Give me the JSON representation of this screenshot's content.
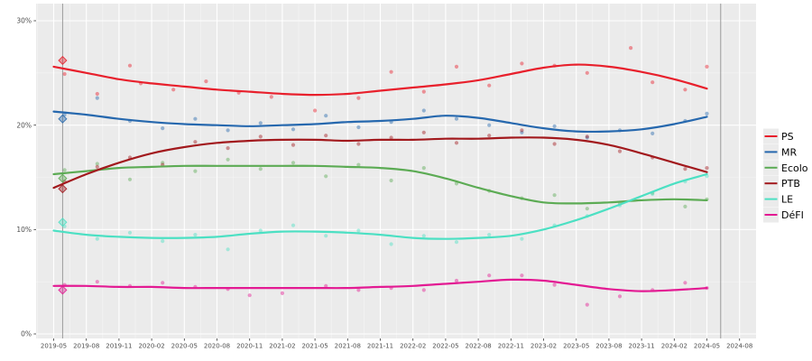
{
  "figure": {
    "background": "#ffffff",
    "panel_background": "#ebebeb",
    "gridline_major_color": "#ffffff",
    "gridline_minor_color": "#f7f7f7",
    "tick_label_color": "#4d4d4d",
    "tick_mark_color": "#333333",
    "election_line_color": "#9c9c9c",
    "legend_key_background": "#ebebeb",
    "legend_text_color": "#000000"
  },
  "chart_data": {
    "type": "scatter",
    "subtype": "polls-with-smoothed-trend-lines",
    "title": "",
    "xlabel": "",
    "ylabel": "",
    "x_axis": {
      "tick_labels": [
        "2019-05",
        "2019-08",
        "2019-11",
        "2020-02",
        "2020-05",
        "2020-08",
        "2020-11",
        "2021-02",
        "2021-05",
        "2021-08",
        "2021-11",
        "2022-02",
        "2022-05",
        "2022-08",
        "2022-11",
        "2023-02",
        "2023-05",
        "2023-08",
        "2023-11",
        "2024-02",
        "2024-05",
        "2024-08"
      ]
    },
    "y_axis": {
      "tick_labels": [
        "0%",
        "10%",
        "20%",
        "30%"
      ],
      "tick_values": [
        0,
        10,
        20,
        30
      ],
      "minor_values": [
        5,
        15,
        25
      ],
      "range": [
        -0.5,
        31.7
      ]
    },
    "grid": true,
    "legend_position": "right",
    "elections": [
      {
        "date": "2019-05-26",
        "results": [
          {
            "party": "PS",
            "value": 26.2
          },
          {
            "party": "MR",
            "value": 20.6
          },
          {
            "party": "Ecolo",
            "value": 14.9
          },
          {
            "party": "PTB",
            "value": 13.9
          },
          {
            "party": "LE",
            "value": 10.7
          },
          {
            "party": "DéFI",
            "value": 4.2
          }
        ]
      },
      {
        "date": "2024-06-09",
        "results": []
      }
    ],
    "trend_dates": [
      "2019-05",
      "2019-08",
      "2019-11",
      "2020-02",
      "2020-05",
      "2020-08",
      "2020-11",
      "2021-02",
      "2021-05",
      "2021-08",
      "2021-11",
      "2022-02",
      "2022-05",
      "2022-08",
      "2022-11",
      "2023-02",
      "2023-05",
      "2023-08",
      "2023-11",
      "2024-02",
      "2024-05"
    ],
    "series": [
      {
        "name": "PS",
        "color": "#e8202c",
        "trend_values": [
          25.6,
          25.0,
          24.4,
          24.0,
          23.7,
          23.4,
          23.2,
          23.0,
          22.9,
          23.0,
          23.3,
          23.6,
          23.9,
          24.3,
          24.9,
          25.5,
          25.8,
          25.6,
          25.1,
          24.4,
          23.5
        ],
        "polls": [
          [
            "2019-06",
            24.9
          ],
          [
            "2019-09",
            23.0
          ],
          [
            "2019-12",
            25.7
          ],
          [
            "2020-01",
            24.0
          ],
          [
            "2020-04",
            23.4
          ],
          [
            "2020-07",
            24.2
          ],
          [
            "2020-10",
            23.1
          ],
          [
            "2021-01",
            22.7
          ],
          [
            "2021-05",
            21.4
          ],
          [
            "2021-09",
            22.6
          ],
          [
            "2021-12",
            25.1
          ],
          [
            "2022-03",
            23.2
          ],
          [
            "2022-06",
            25.6
          ],
          [
            "2022-09",
            23.8
          ],
          [
            "2022-12",
            25.9
          ],
          [
            "2023-03",
            25.7
          ],
          [
            "2023-06",
            25.0
          ],
          [
            "2023-10",
            27.4
          ],
          [
            "2023-12",
            24.1
          ],
          [
            "2024-03",
            23.4
          ],
          [
            "2024-05",
            25.6
          ]
        ]
      },
      {
        "name": "MR",
        "color": "#2668ae",
        "trend_values": [
          21.3,
          21.0,
          20.6,
          20.3,
          20.1,
          20.0,
          19.9,
          20.0,
          20.1,
          20.3,
          20.4,
          20.6,
          20.9,
          20.7,
          20.2,
          19.7,
          19.4,
          19.4,
          19.6,
          20.1,
          20.8
        ],
        "polls": [
          [
            "2019-06",
            21.0
          ],
          [
            "2019-09",
            22.6
          ],
          [
            "2019-12",
            20.4
          ],
          [
            "2020-03",
            19.7
          ],
          [
            "2020-06",
            20.6
          ],
          [
            "2020-09",
            19.5
          ],
          [
            "2020-12",
            20.2
          ],
          [
            "2021-03",
            19.6
          ],
          [
            "2021-06",
            20.9
          ],
          [
            "2021-09",
            19.8
          ],
          [
            "2021-12",
            20.3
          ],
          [
            "2022-03",
            21.4
          ],
          [
            "2022-06",
            20.6
          ],
          [
            "2022-09",
            20.0
          ],
          [
            "2022-12",
            19.3
          ],
          [
            "2023-03",
            19.9
          ],
          [
            "2023-06",
            18.8
          ],
          [
            "2023-09",
            19.5
          ],
          [
            "2023-12",
            19.2
          ],
          [
            "2024-03",
            20.4
          ],
          [
            "2024-05",
            21.1
          ]
        ]
      },
      {
        "name": "Ecolo",
        "color": "#5cab54",
        "trend_values": [
          15.3,
          15.6,
          15.9,
          16.0,
          16.1,
          16.1,
          16.1,
          16.1,
          16.1,
          16.0,
          15.9,
          15.6,
          14.9,
          14.0,
          13.2,
          12.6,
          12.5,
          12.6,
          12.8,
          12.9,
          12.8
        ],
        "polls": [
          [
            "2019-06",
            15.7
          ],
          [
            "2019-09",
            16.3
          ],
          [
            "2019-12",
            14.8
          ],
          [
            "2020-03",
            16.4
          ],
          [
            "2020-06",
            15.6
          ],
          [
            "2020-09",
            16.7
          ],
          [
            "2020-12",
            15.8
          ],
          [
            "2021-03",
            16.4
          ],
          [
            "2021-06",
            15.1
          ],
          [
            "2021-09",
            16.2
          ],
          [
            "2021-12",
            14.7
          ],
          [
            "2022-03",
            15.9
          ],
          [
            "2022-06",
            14.4
          ],
          [
            "2022-09",
            13.7
          ],
          [
            "2022-12",
            13.0
          ],
          [
            "2023-03",
            13.3
          ],
          [
            "2023-06",
            12.0
          ],
          [
            "2023-09",
            12.5
          ],
          [
            "2023-12",
            13.5
          ],
          [
            "2024-03",
            12.2
          ],
          [
            "2024-05",
            12.9
          ]
        ]
      },
      {
        "name": "PTB",
        "color": "#a2191d",
        "trend_values": [
          14.0,
          15.3,
          16.4,
          17.3,
          17.9,
          18.3,
          18.5,
          18.6,
          18.6,
          18.5,
          18.6,
          18.6,
          18.7,
          18.7,
          18.8,
          18.8,
          18.6,
          18.1,
          17.3,
          16.4,
          15.5
        ],
        "polls": [
          [
            "2019-06",
            14.6
          ],
          [
            "2019-09",
            16.0
          ],
          [
            "2019-12",
            16.9
          ],
          [
            "2020-03",
            16.2
          ],
          [
            "2020-06",
            18.4
          ],
          [
            "2020-09",
            17.8
          ],
          [
            "2020-12",
            18.9
          ],
          [
            "2021-03",
            18.1
          ],
          [
            "2021-06",
            19.0
          ],
          [
            "2021-09",
            18.2
          ],
          [
            "2021-12",
            18.8
          ],
          [
            "2022-03",
            19.3
          ],
          [
            "2022-06",
            18.3
          ],
          [
            "2022-09",
            19.0
          ],
          [
            "2022-12",
            19.5
          ],
          [
            "2023-03",
            18.2
          ],
          [
            "2023-06",
            18.9
          ],
          [
            "2023-09",
            17.5
          ],
          [
            "2023-12",
            16.9
          ],
          [
            "2024-03",
            15.8
          ],
          [
            "2024-05",
            15.9
          ]
        ]
      },
      {
        "name": "LE",
        "color": "#4ce0c3",
        "trend_values": [
          9.9,
          9.5,
          9.3,
          9.2,
          9.2,
          9.3,
          9.6,
          9.8,
          9.8,
          9.7,
          9.5,
          9.2,
          9.1,
          9.2,
          9.4,
          10.0,
          10.9,
          12.0,
          13.2,
          14.4,
          15.3
        ],
        "polls": [
          [
            "2019-06",
            10.3
          ],
          [
            "2019-09",
            9.1
          ],
          [
            "2019-12",
            9.7
          ],
          [
            "2020-03",
            8.9
          ],
          [
            "2020-06",
            9.5
          ],
          [
            "2020-09",
            8.1
          ],
          [
            "2020-12",
            9.9
          ],
          [
            "2021-03",
            10.4
          ],
          [
            "2021-06",
            9.4
          ],
          [
            "2021-09",
            9.9
          ],
          [
            "2021-12",
            8.6
          ],
          [
            "2022-03",
            9.4
          ],
          [
            "2022-06",
            8.8
          ],
          [
            "2022-09",
            9.5
          ],
          [
            "2022-12",
            9.1
          ],
          [
            "2023-03",
            10.4
          ],
          [
            "2023-06",
            11.3
          ],
          [
            "2023-09",
            12.3
          ],
          [
            "2023-12",
            13.4
          ],
          [
            "2024-03",
            14.6
          ],
          [
            "2024-05",
            15.1
          ]
        ]
      },
      {
        "name": "DéFI",
        "color": "#e31a93",
        "trend_values": [
          4.6,
          4.6,
          4.5,
          4.5,
          4.4,
          4.4,
          4.4,
          4.4,
          4.4,
          4.4,
          4.5,
          4.6,
          4.8,
          5.0,
          5.2,
          5.1,
          4.7,
          4.3,
          4.1,
          4.2,
          4.4
        ],
        "polls": [
          [
            "2019-06",
            4.7
          ],
          [
            "2019-09",
            5.0
          ],
          [
            "2019-12",
            4.6
          ],
          [
            "2020-03",
            4.9
          ],
          [
            "2020-06",
            4.5
          ],
          [
            "2020-09",
            4.3
          ],
          [
            "2020-11",
            3.7
          ],
          [
            "2021-02",
            3.9
          ],
          [
            "2021-06",
            4.6
          ],
          [
            "2021-09",
            4.2
          ],
          [
            "2021-12",
            4.4
          ],
          [
            "2022-03",
            4.2
          ],
          [
            "2022-06",
            5.1
          ],
          [
            "2022-09",
            5.6
          ],
          [
            "2022-12",
            5.6
          ],
          [
            "2023-03",
            4.7
          ],
          [
            "2023-06",
            2.8
          ],
          [
            "2023-09",
            3.6
          ],
          [
            "2023-12",
            4.2
          ],
          [
            "2024-03",
            4.9
          ],
          [
            "2024-05",
            4.4
          ]
        ]
      }
    ]
  },
  "legend": {
    "items": [
      "PS",
      "MR",
      "Ecolo",
      "PTB",
      "LE",
      "DéFI"
    ]
  }
}
